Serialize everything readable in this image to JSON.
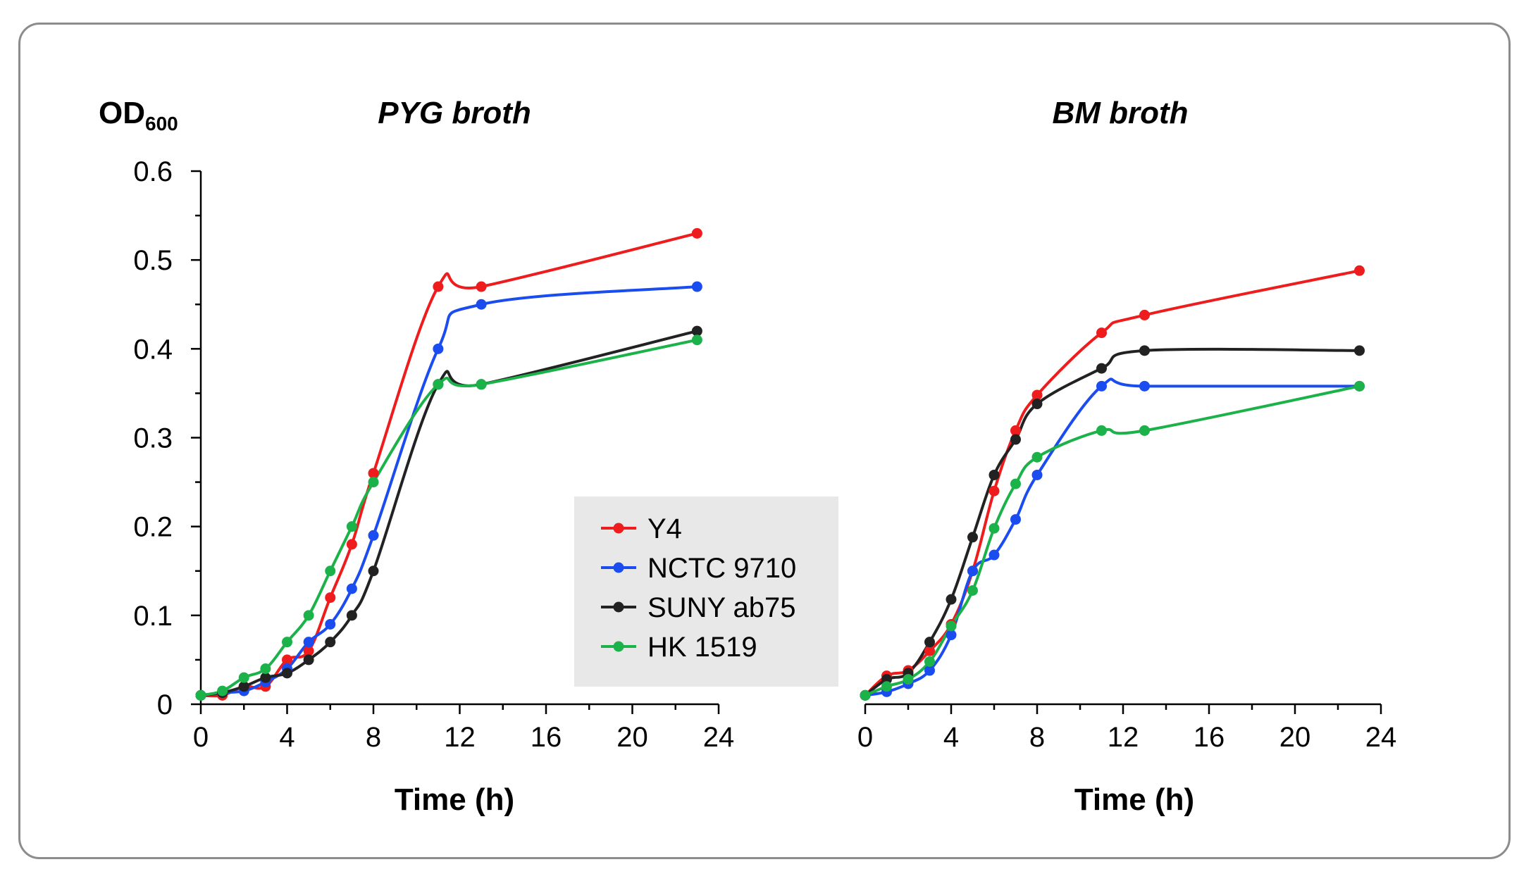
{
  "chart_data": [
    {
      "type": "line",
      "title": "PYG broth",
      "ylabel": "OD",
      "ylabel_sub": "600",
      "xlabel": "Time (h)",
      "xlim": [
        0,
        24
      ],
      "ylim": [
        0,
        0.6
      ],
      "xticks": [
        "0",
        "4",
        "8",
        "12",
        "16",
        "20",
        "24"
      ],
      "yticks": [
        "0",
        "0.1",
        "0.2",
        "0.3",
        "0.4",
        "0.5",
        "0.6"
      ],
      "series": [
        {
          "name": "Y4",
          "color": "#ee1c1c",
          "x": [
            0,
            1,
            2,
            3,
            4,
            5,
            6,
            7,
            8,
            11,
            13,
            23
          ],
          "y": [
            0.01,
            0.01,
            0.02,
            0.02,
            0.05,
            0.06,
            0.12,
            0.18,
            0.26,
            0.47,
            0.47,
            0.53
          ]
        },
        {
          "name": "NCTC 9710",
          "color": "#1a4cf0",
          "x": [
            0,
            1,
            2,
            3,
            4,
            5,
            6,
            7,
            8,
            11,
            13,
            23
          ],
          "y": [
            0.01,
            0.013,
            0.015,
            0.025,
            0.04,
            0.07,
            0.09,
            0.13,
            0.19,
            0.4,
            0.45,
            0.47
          ]
        },
        {
          "name": "SUNY ab75",
          "color": "#222222",
          "x": [
            0,
            1,
            2,
            3,
            4,
            5,
            6,
            7,
            8,
            11,
            13,
            23
          ],
          "y": [
            0.01,
            0.013,
            0.02,
            0.03,
            0.035,
            0.05,
            0.07,
            0.1,
            0.15,
            0.36,
            0.36,
            0.42
          ]
        },
        {
          "name": "HK 1519",
          "color": "#1bb24a",
          "x": [
            0,
            1,
            2,
            3,
            4,
            5,
            6,
            7,
            8,
            11,
            13,
            23
          ],
          "y": [
            0.01,
            0.015,
            0.03,
            0.04,
            0.07,
            0.1,
            0.15,
            0.2,
            0.25,
            0.36,
            0.36,
            0.41
          ]
        }
      ],
      "legend": {
        "placement": "bottom-right",
        "entries": [
          "Y4",
          "NCTC 9710",
          "SUNY ab75",
          "HK 1519"
        ]
      }
    },
    {
      "type": "line",
      "title": "BM broth",
      "xlabel": "Time (h)",
      "xlim": [
        0,
        24
      ],
      "ylim": [
        0,
        0.6
      ],
      "xticks": [
        "0",
        "4",
        "8",
        "12",
        "16",
        "20",
        "24"
      ],
      "series": [
        {
          "name": "Y4",
          "color": "#ee1c1c",
          "x": [
            0,
            1,
            2,
            3,
            4,
            5,
            6,
            7,
            8,
            11,
            13,
            23
          ],
          "y": [
            0.01,
            0.032,
            0.038,
            0.06,
            0.09,
            0.15,
            0.24,
            0.308,
            0.348,
            0.418,
            0.438,
            0.488
          ]
        },
        {
          "name": "NCTC 9710",
          "color": "#1a4cf0",
          "x": [
            0,
            1,
            2,
            3,
            4,
            5,
            6,
            7,
            8,
            11,
            13,
            23
          ],
          "y": [
            0.01,
            0.014,
            0.023,
            0.038,
            0.078,
            0.15,
            0.168,
            0.208,
            0.258,
            0.358,
            0.358,
            0.358
          ]
        },
        {
          "name": "SUNY ab75",
          "color": "#222222",
          "x": [
            0,
            1,
            2,
            3,
            4,
            5,
            6,
            7,
            8,
            11,
            13,
            23
          ],
          "y": [
            0.01,
            0.028,
            0.035,
            0.07,
            0.118,
            0.188,
            0.258,
            0.298,
            0.338,
            0.378,
            0.398,
            0.398
          ]
        },
        {
          "name": "HK 1519",
          "color": "#1bb24a",
          "x": [
            0,
            1,
            2,
            3,
            4,
            5,
            6,
            7,
            8,
            11,
            13,
            23
          ],
          "y": [
            0.01,
            0.02,
            0.028,
            0.048,
            0.088,
            0.128,
            0.198,
            0.248,
            0.278,
            0.308,
            0.308,
            0.358
          ]
        }
      ]
    }
  ]
}
